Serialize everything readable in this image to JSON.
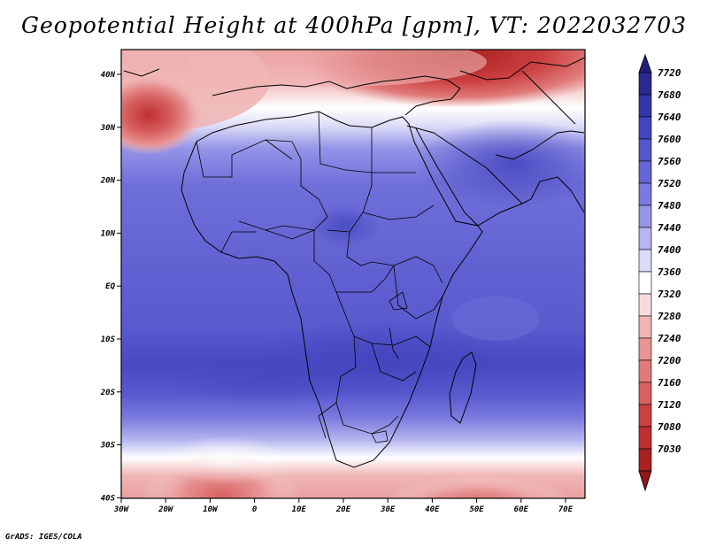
{
  "title": "Geopotential Height at 400hPa [gpm], VT: 2022032703",
  "credit": "GrADS: IGES/COLA",
  "lat_labels": [
    "40N",
    "30N",
    "20N",
    "10N",
    "EQ",
    "10S",
    "20S",
    "30S",
    "40S"
  ],
  "lon_labels": [
    "30W",
    "20W",
    "10W",
    "0",
    "10E",
    "20E",
    "30E",
    "40E",
    "50E",
    "60E",
    "70E"
  ],
  "colorbar": {
    "labels": [
      "7720",
      "7680",
      "7640",
      "7600",
      "7560",
      "7520",
      "7480",
      "7440",
      "7400",
      "7360",
      "7320",
      "7280",
      "7240",
      "7200",
      "7160",
      "7120",
      "7080",
      "7030"
    ],
    "colors": [
      "#2a2a8f",
      "#3535a8",
      "#4545bf",
      "#5555cc",
      "#6565d6",
      "#7a7adf",
      "#9494e8",
      "#b5b5f0",
      "#dcdcf8",
      "#ffffff",
      "#f8dcdc",
      "#f0b5b5",
      "#e89494",
      "#e07a7a",
      "#d86060",
      "#cc4040",
      "#bf2f2f",
      "#a82020"
    ]
  }
}
